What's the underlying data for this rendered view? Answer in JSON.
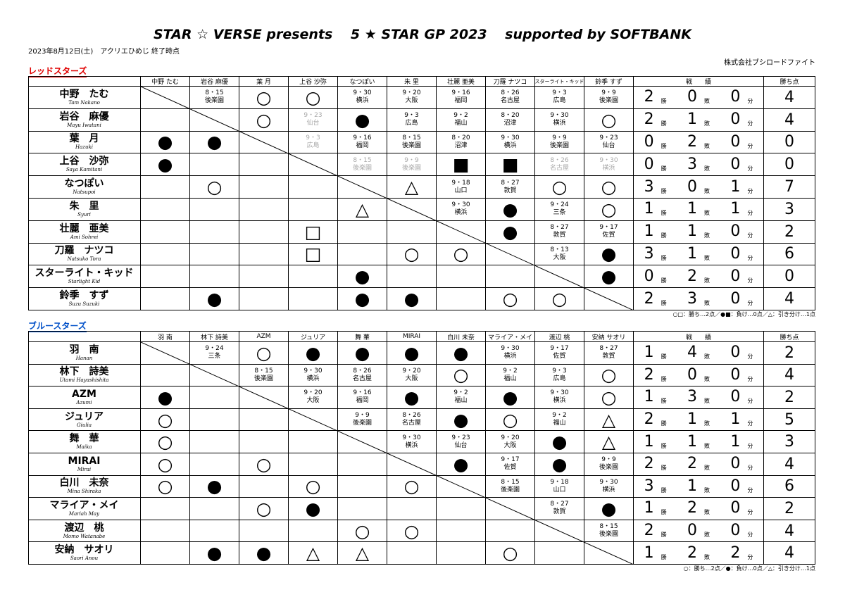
{
  "header": {
    "title": "STAR ☆ VERSE presents　 5 ★ STAR GP 2023　 supported by SOFTBANK",
    "subtitle": "2023年8月12日(土)　アクリエひめじ 終了時点",
    "company": "株式会社ブシロードファイト"
  },
  "record_header": "戦　　績",
  "points_header": "勝ち点",
  "record_units": [
    "勝",
    "敗",
    "分"
  ],
  "teams": [
    {
      "name": "レッドスターズ",
      "color": "#e00000",
      "footnote": "○□：勝ち…2点／●■：負け…0点／△：引き分け…1点",
      "columns": [
        "中野 たむ",
        "岩谷 麻優",
        "葉 月",
        "上谷 沙弥",
        "なつぽい",
        "朱 里",
        "壮麗 亜美",
        "刀羅 ナツコ",
        "スターライト・キッド",
        "鈴季 すず"
      ],
      "rows": [
        {
          "name": "中野　たむ",
          "en": "Tam Nakano",
          "cells": [
            null,
            {
              "date": "8・15",
              "venue": "後楽園"
            },
            "○",
            "○",
            {
              "date": "9・30",
              "venue": "横浜"
            },
            {
              "date": "9・20",
              "venue": "大阪"
            },
            {
              "date": "9・16",
              "venue": "福岡"
            },
            {
              "date": "8・26",
              "venue": "名古屋"
            },
            {
              "date": "9・3",
              "venue": "広島"
            },
            {
              "date": "9・9",
              "venue": "後楽園"
            }
          ],
          "wins": 2,
          "losses": 0,
          "draws": 0,
          "points": 4
        },
        {
          "name": "岩谷　麻優",
          "en": "Mayu Iwatani",
          "cells": [
            null,
            null,
            "○",
            {
              "date": "9・23",
              "venue": "仙台",
              "color": "#aaaaaa"
            },
            "●",
            {
              "date": "9・3",
              "venue": "広島"
            },
            {
              "date": "9・2",
              "venue": "福山"
            },
            {
              "date": "8・20",
              "venue": "沼津"
            },
            {
              "date": "9・30",
              "venue": "横浜"
            },
            "○"
          ],
          "wins": 2,
          "losses": 1,
          "draws": 0,
          "points": 4
        },
        {
          "name": "葉　月",
          "en": "Hazuki",
          "cells": [
            "●",
            "●",
            null,
            {
              "date": "9・3",
              "venue": "広島",
              "color": "#aaaaaa"
            },
            {
              "date": "9・16",
              "venue": "福岡"
            },
            {
              "date": "8・15",
              "venue": "後楽園"
            },
            {
              "date": "8・20",
              "venue": "沼津"
            },
            {
              "date": "9・30",
              "venue": "横浜"
            },
            {
              "date": "9・9",
              "venue": "後楽園"
            },
            {
              "date": "9・23",
              "venue": "仙台"
            }
          ],
          "wins": 0,
          "losses": 2,
          "draws": 0,
          "points": 0
        },
        {
          "name": "上谷　沙弥",
          "en": "Saya Kamitani",
          "cells": [
            "●",
            null,
            null,
            null,
            {
              "date": "8・15",
              "venue": "後楽園",
              "color": "#aaaaaa"
            },
            {
              "date": "9・9",
              "venue": "後楽園",
              "color": "#aaaaaa"
            },
            "■",
            "■",
            {
              "date": "8・26",
              "venue": "名古屋",
              "color": "#aaaaaa"
            },
            {
              "date": "9・30",
              "venue": "横浜",
              "color": "#aaaaaa"
            }
          ],
          "wins": 0,
          "losses": 3,
          "draws": 0,
          "points": 0
        },
        {
          "name": "なつぽい",
          "en": "Natsupoi",
          "cells": [
            null,
            "○",
            null,
            null,
            null,
            "△",
            {
              "date": "9・18",
              "venue": "山口"
            },
            {
              "date": "8・27",
              "venue": "敦賀"
            },
            "○",
            "○"
          ],
          "wins": 3,
          "losses": 0,
          "draws": 1,
          "points": 7
        },
        {
          "name": "朱　里",
          "en": "Syuri",
          "cells": [
            null,
            null,
            null,
            null,
            "△",
            null,
            {
              "date": "9・30",
              "venue": "横浜"
            },
            "●",
            {
              "date": "9・24",
              "venue": "三条"
            },
            "○"
          ],
          "wins": 1,
          "losses": 1,
          "draws": 1,
          "points": 3
        },
        {
          "name": "壮麗　亜美",
          "en": "Ami Sohrei",
          "cells": [
            null,
            null,
            null,
            "□",
            null,
            null,
            null,
            "●",
            {
              "date": "8・27",
              "venue": "敦賀"
            },
            {
              "date": "9・17",
              "venue": "佐賀"
            }
          ],
          "wins": 1,
          "losses": 1,
          "draws": 0,
          "points": 2
        },
        {
          "name": "刀羅　ナツコ",
          "en": "Natsuko Tora",
          "cells": [
            null,
            null,
            null,
            "□",
            null,
            "○",
            "○",
            null,
            {
              "date": "8・13",
              "venue": "大阪"
            },
            "●"
          ],
          "wins": 3,
          "losses": 1,
          "draws": 0,
          "points": 6
        },
        {
          "name": "スターライト・キッド",
          "en": "Starlight Kid",
          "cells": [
            null,
            null,
            null,
            null,
            "●",
            null,
            null,
            null,
            null,
            "●"
          ],
          "wins": 0,
          "losses": 2,
          "draws": 0,
          "points": 0
        },
        {
          "name": "鈴季　すず",
          "en": "Suzu Suzuki",
          "cells": [
            null,
            "●",
            null,
            null,
            "●",
            "●",
            null,
            "○",
            "○",
            null
          ],
          "wins": 2,
          "losses": 3,
          "draws": 0,
          "points": 4
        }
      ]
    },
    {
      "name": "ブルースターズ",
      "color": "#0050c8",
      "footnote": "○：勝ち…2点／●：負け…0点／△：引き分け…1点",
      "columns": [
        "羽 南",
        "林下 詩美",
        "AZM",
        "ジュリア",
        "舞 華",
        "MIRAI",
        "白川 未奈",
        "マライア・メイ",
        "渡辺 桃",
        "安納 サオリ"
      ],
      "rows": [
        {
          "name": "羽　南",
          "en": "Hanan",
          "cells": [
            null,
            {
              "date": "9・24",
              "venue": "三条"
            },
            "○",
            "●",
            "●",
            "●",
            "●",
            {
              "date": "9・30",
              "venue": "横浜"
            },
            {
              "date": "9・17",
              "venue": "佐賀"
            },
            {
              "date": "8・27",
              "venue": "敦賀"
            }
          ],
          "wins": 1,
          "losses": 4,
          "draws": 0,
          "points": 2
        },
        {
          "name": "林下　詩美",
          "en": "Utami Hayashishita",
          "cells": [
            null,
            null,
            {
              "date": "8・15",
              "venue": "後楽園"
            },
            {
              "date": "9・30",
              "venue": "横浜"
            },
            {
              "date": "8・26",
              "venue": "名古屋"
            },
            {
              "date": "9・20",
              "venue": "大阪"
            },
            "○",
            {
              "date": "9・2",
              "venue": "福山"
            },
            {
              "date": "9・3",
              "venue": "広島"
            },
            "○"
          ],
          "wins": 2,
          "losses": 0,
          "draws": 0,
          "points": 4
        },
        {
          "name": "AZM",
          "en": "Azumi",
          "cells": [
            "●",
            null,
            null,
            {
              "date": "9・20",
              "venue": "大阪"
            },
            {
              "date": "9・16",
              "venue": "福岡"
            },
            "●",
            {
              "date": "9・2",
              "venue": "福山"
            },
            "●",
            {
              "date": "9・30",
              "venue": "横浜"
            },
            "○"
          ],
          "wins": 1,
          "losses": 3,
          "draws": 0,
          "points": 2
        },
        {
          "name": "ジュリア",
          "en": "Giulia",
          "cells": [
            "○",
            null,
            null,
            null,
            {
              "date": "9・9",
              "venue": "後楽園"
            },
            {
              "date": "8・26",
              "venue": "名古屋"
            },
            "●",
            "○",
            {
              "date": "9・2",
              "venue": "福山"
            },
            "△"
          ],
          "wins": 2,
          "losses": 1,
          "draws": 1,
          "points": 5
        },
        {
          "name": "舞　華",
          "en": "Maika",
          "cells": [
            "○",
            null,
            null,
            null,
            null,
            {
              "date": "9・30",
              "venue": "横浜"
            },
            {
              "date": "9・23",
              "venue": "仙台"
            },
            {
              "date": "9・20",
              "venue": "大阪"
            },
            "●",
            "△"
          ],
          "wins": 1,
          "losses": 1,
          "draws": 1,
          "points": 3
        },
        {
          "name": "MIRAI",
          "en": "Mirai",
          "cells": [
            "○",
            null,
            "○",
            null,
            null,
            null,
            "●",
            {
              "date": "9・17",
              "venue": "佐賀"
            },
            "●",
            {
              "date": "9・9",
              "venue": "後楽園"
            }
          ],
          "wins": 2,
          "losses": 2,
          "draws": 0,
          "points": 4
        },
        {
          "name": "白川　未奈",
          "en": "Mina Shiraka",
          "cells": [
            "○",
            "●",
            null,
            "○",
            null,
            "○",
            null,
            {
              "date": "8・15",
              "venue": "後楽園"
            },
            {
              "date": "9・18",
              "venue": "山口"
            },
            {
              "date": "9・30",
              "venue": "横浜"
            }
          ],
          "wins": 3,
          "losses": 1,
          "draws": 0,
          "points": 6
        },
        {
          "name": "マライア・メイ",
          "en": "Mariah May",
          "cells": [
            null,
            null,
            "○",
            "●",
            null,
            null,
            null,
            null,
            {
              "date": "8・27",
              "venue": "敦賀"
            },
            "●"
          ],
          "wins": 1,
          "losses": 2,
          "draws": 0,
          "points": 2
        },
        {
          "name": "渡辺　桃",
          "en": "Momo Watanabe",
          "cells": [
            null,
            null,
            null,
            null,
            "○",
            "○",
            null,
            null,
            null,
            {
              "date": "8・15",
              "venue": "後楽園"
            }
          ],
          "wins": 2,
          "losses": 0,
          "draws": 0,
          "points": 4
        },
        {
          "name": "安納　サオリ",
          "en": "Saori Anou",
          "cells": [
            null,
            "●",
            "●",
            "△",
            "△",
            null,
            null,
            "○",
            null,
            null
          ],
          "wins": 1,
          "losses": 2,
          "draws": 2,
          "points": 4
        }
      ]
    }
  ]
}
